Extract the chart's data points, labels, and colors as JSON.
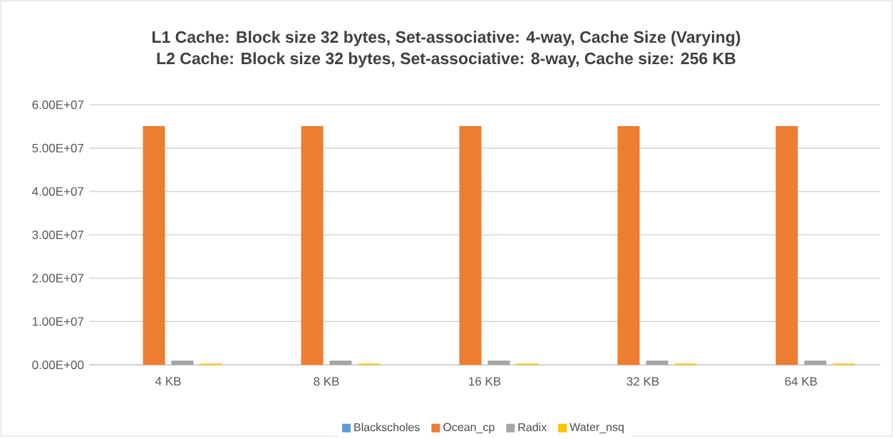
{
  "chart_data": {
    "type": "bar",
    "title": "L1 Cache: Block size 32 bytes, Set-associative: 4-way, Cache Size (Varying)",
    "subtitle": "L2 Cache: Block size 32 bytes, Set-associative: 8-way, Cache size: 256 KB",
    "categories": [
      "4 KB",
      "8 KB",
      "16 KB",
      "32 KB",
      "64 KB"
    ],
    "series": [
      {
        "name": "Blackscholes",
        "color": "#5b9bd5",
        "values": [
          0,
          0,
          0,
          0,
          0
        ]
      },
      {
        "name": "Ocean_cp",
        "color": "#ed7d31",
        "values": [
          55100000,
          55100000,
          55100000,
          55100000,
          55100000
        ]
      },
      {
        "name": "Radix",
        "color": "#a5a5a5",
        "values": [
          1000000,
          1000000,
          1000000,
          1000000,
          1000000
        ]
      },
      {
        "name": "Water_nsq",
        "color": "#ffc000",
        "values": [
          300000,
          300000,
          300000,
          300000,
          300000
        ]
      }
    ],
    "ylim": [
      0,
      60000000
    ],
    "yticks": [
      {
        "value": 0,
        "label": "0.00E+00"
      },
      {
        "value": 10000000,
        "label": "1.00E+07"
      },
      {
        "value": 20000000,
        "label": "2.00E+07"
      },
      {
        "value": 30000000,
        "label": "3.00E+07"
      },
      {
        "value": 40000000,
        "label": "4.00E+07"
      },
      {
        "value": 50000000,
        "label": "5.00E+07"
      },
      {
        "value": 60000000,
        "label": "6.00E+07"
      }
    ],
    "grid": "y",
    "legend": "bottom"
  }
}
